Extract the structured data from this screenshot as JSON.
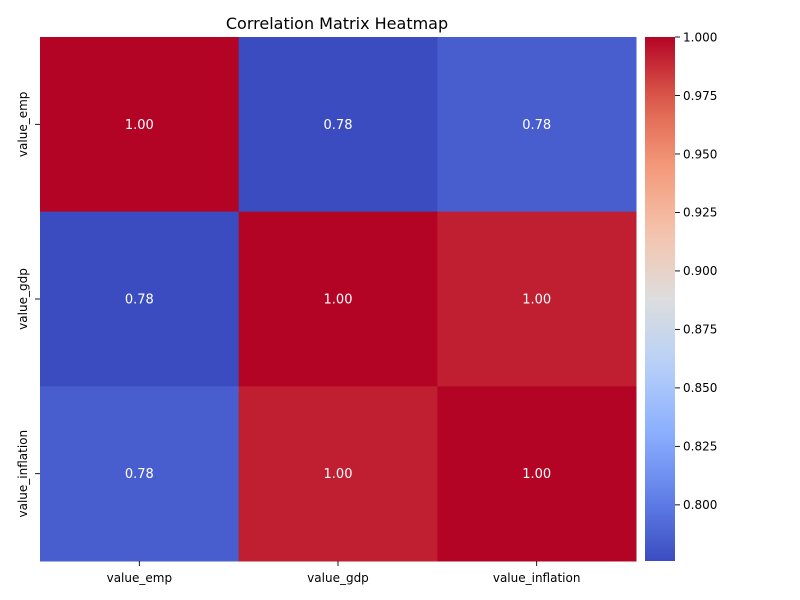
{
  "chart_data": {
    "type": "heatmap",
    "title": "Correlation Matrix Heatmap",
    "xlabel": "",
    "ylabel": "",
    "x_categories": [
      "value_emp",
      "value_gdp",
      "value_inflation"
    ],
    "y_categories": [
      "value_emp",
      "value_gdp",
      "value_inflation"
    ],
    "values": [
      [
        1.0,
        0.776,
        0.785
      ],
      [
        0.776,
        1.0,
        0.992
      ],
      [
        0.785,
        0.992,
        1.0
      ]
    ],
    "cell_labels": [
      [
        "1.00",
        "0.78",
        "0.78"
      ],
      [
        "0.78",
        "1.00",
        "1.00"
      ],
      [
        "0.78",
        "1.00",
        "1.00"
      ]
    ],
    "colormap": "coolwarm",
    "colorbar": {
      "vmin": 0.776,
      "vmax": 1.0,
      "tick_values": [
        0.8,
        0.825,
        0.85,
        0.875,
        0.9,
        0.925,
        0.95,
        0.975,
        1.0
      ],
      "tick_labels": [
        "0.800",
        "0.825",
        "0.850",
        "0.875",
        "0.900",
        "0.925",
        "0.950",
        "0.975",
        "1.000"
      ]
    },
    "grid": false,
    "legend": "colorbar-right"
  }
}
